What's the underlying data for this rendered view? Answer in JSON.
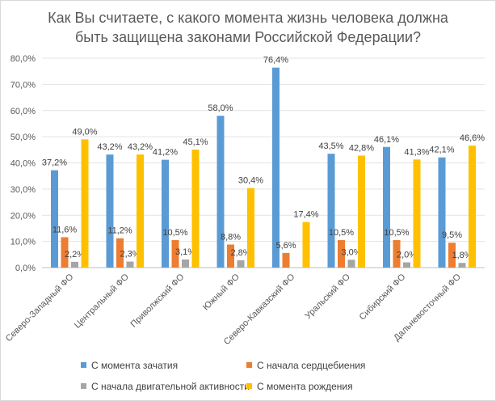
{
  "chart_data": {
    "type": "bar",
    "title_lines": [
      "Как Вы считаете, с какого момента жизнь человека должна",
      "быть защищена законами Российской Федерации?"
    ],
    "categories": [
      "Северо-Западный ФО",
      "Центральный ФО",
      "Приволжский ФО",
      "Южный ФО",
      "Северо-Кавказский ФО",
      "Уральский ФО",
      "Сибирский ФО",
      "Дальневосточный ФО"
    ],
    "series": [
      {
        "name": "С момента зачатия",
        "color": "#5b9bd5",
        "values": [
          37.2,
          43.2,
          41.2,
          58.0,
          76.4,
          43.5,
          46.1,
          42.1
        ],
        "labels": [
          "37,2%",
          "43,2%",
          "41,2%",
          "58,0%",
          "76,4%",
          "43,5%",
          "46,1%",
          "42,1%"
        ]
      },
      {
        "name": "С начала сердцебиения",
        "color": "#ed7d31",
        "values": [
          11.6,
          11.2,
          10.5,
          8.8,
          5.6,
          10.5,
          10.5,
          9.5
        ],
        "labels": [
          "11,6%",
          "11,2%",
          "10,5%",
          "8,8%",
          "5,6%",
          "10,5%",
          "10,5%",
          "9,5%"
        ]
      },
      {
        "name": "С начала двигательной активности",
        "color": "#a5a5a5",
        "values": [
          2.2,
          2.3,
          3.1,
          2.8,
          null,
          3.0,
          2.0,
          1.8
        ],
        "labels": [
          "2,2%",
          "2,3%",
          "3,1%",
          "2,8%",
          null,
          "3,0%",
          "2,0%",
          "1,8%"
        ]
      },
      {
        "name": "С момента рождения",
        "color": "#ffc000",
        "values": [
          49.0,
          43.2,
          45.1,
          30.4,
          17.4,
          42.8,
          41.3,
          46.6
        ],
        "labels": [
          "49,0%",
          "43,2%",
          "45,1%",
          "30,4%",
          "17,4%",
          "42,8%",
          "41,3%",
          "46,6%"
        ]
      }
    ],
    "ylim": [
      0,
      80
    ],
    "yticks": [
      "0,0%",
      "10,0%",
      "20,0%",
      "30,0%",
      "40,0%",
      "50,0%",
      "60,0%",
      "70,0%",
      "80,0%"
    ],
    "grid": true,
    "legend_position": "bottom"
  }
}
